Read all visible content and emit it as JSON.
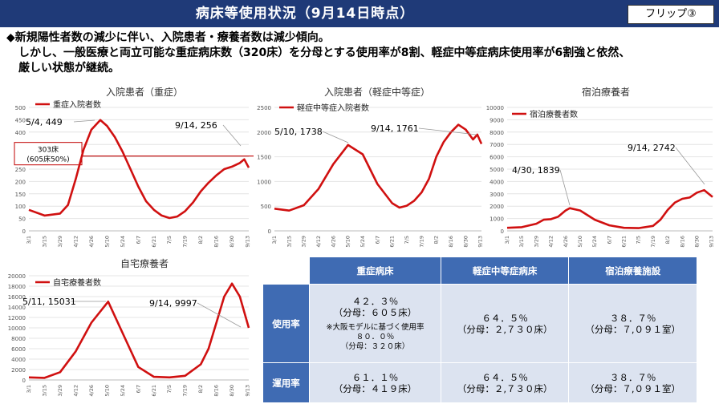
{
  "header": {
    "title": "病床等使用状況（9月14日時点）",
    "flip_label": "フリップ③"
  },
  "intro": {
    "line1": "◆新規陽性者数の減少に伴い、入院患者・療養者数は減少傾向。",
    "line2": "しかし、一般医療と両立可能な重症病床数（320床）を分母とする使用率が8割、軽症中等症病床使用率が6割強と依然、",
    "line3": "厳しい状態が継続。"
  },
  "x_ticks": [
    "3/1",
    "3/15",
    "3/29",
    "4/12",
    "4/26",
    "5/10",
    "5/24",
    "6/7",
    "6/21",
    "7/5",
    "7/19",
    "8/2",
    "8/16",
    "8/30",
    "9/13"
  ],
  "chart_data": [
    {
      "type": "line",
      "title": "入院患者（重症）",
      "series": [
        {
          "name": "重症入院者数",
          "color": "#d01010",
          "x": [
            "3/1",
            "3/15",
            "3/29",
            "4/5",
            "4/12",
            "4/19",
            "4/26",
            "5/4",
            "5/10",
            "5/17",
            "5/24",
            "5/31",
            "6/7",
            "6/14",
            "6/21",
            "6/28",
            "7/5",
            "7/12",
            "7/19",
            "7/26",
            "8/2",
            "8/9",
            "8/16",
            "8/23",
            "8/30",
            "9/6",
            "9/10",
            "9/14"
          ],
          "values": [
            85,
            62,
            70,
            105,
            210,
            330,
            410,
            449,
            425,
            380,
            320,
            250,
            180,
            120,
            85,
            62,
            52,
            58,
            80,
            115,
            160,
            195,
            225,
            250,
            260,
            275,
            290,
            256
          ]
        }
      ],
      "ylim": [
        0,
        500
      ],
      "yticks": [
        0,
        50,
        100,
        150,
        200,
        250,
        300,
        350,
        400,
        450,
        500
      ],
      "reference": {
        "value": 303,
        "label_line1": "303床",
        "label_line2": "(605床50%)"
      },
      "annotations": [
        {
          "label": "5/4, 449"
        },
        {
          "label": "9/14, 256"
        }
      ]
    },
    {
      "type": "line",
      "title": "入院患者（軽症中等症）",
      "series": [
        {
          "name": "軽症中等症入院者数",
          "color": "#d01010",
          "x": [
            "3/1",
            "3/15",
            "3/29",
            "4/12",
            "4/26",
            "5/10",
            "5/24",
            "6/7",
            "6/21",
            "6/28",
            "7/5",
            "7/12",
            "7/19",
            "7/26",
            "8/2",
            "8/9",
            "8/16",
            "8/23",
            "8/30",
            "9/6",
            "9/10",
            "9/14"
          ],
          "values": [
            450,
            410,
            520,
            850,
            1350,
            1738,
            1550,
            950,
            560,
            470,
            510,
            610,
            780,
            1050,
            1500,
            1800,
            2000,
            2150,
            2050,
            1850,
            1950,
            1761
          ]
        }
      ],
      "ylim": [
        0,
        2500
      ],
      "yticks": [
        0,
        500,
        1000,
        1500,
        2000,
        2500
      ],
      "annotations": [
        {
          "label": "5/10, 1738"
        },
        {
          "label": "9/14, 1761"
        }
      ]
    },
    {
      "type": "line",
      "title": "宿泊療養者",
      "series": [
        {
          "name": "宿泊療養者数",
          "color": "#d01010",
          "x": [
            "3/1",
            "3/15",
            "3/29",
            "4/5",
            "4/12",
            "4/19",
            "4/26",
            "4/30",
            "5/10",
            "5/24",
            "6/7",
            "6/21",
            "7/5",
            "7/19",
            "7/26",
            "8/2",
            "8/9",
            "8/16",
            "8/23",
            "8/30",
            "9/6",
            "9/14"
          ],
          "values": [
            250,
            300,
            580,
            900,
            950,
            1150,
            1650,
            1839,
            1650,
            900,
            450,
            250,
            220,
            400,
            900,
            1700,
            2300,
            2600,
            2700,
            3100,
            3300,
            2742
          ]
        }
      ],
      "ylim": [
        0,
        10000
      ],
      "yticks": [
        0,
        1000,
        2000,
        3000,
        4000,
        5000,
        6000,
        7000,
        8000,
        9000,
        10000
      ],
      "annotations": [
        {
          "label": "4/30, 1839"
        },
        {
          "label": "9/14, 2742"
        }
      ]
    },
    {
      "type": "line",
      "title": "自宅療養者",
      "series": [
        {
          "name": "自宅療養者数",
          "color": "#d01010",
          "x": [
            "3/1",
            "3/15",
            "3/29",
            "4/12",
            "4/26",
            "5/11",
            "5/24",
            "6/7",
            "6/21",
            "7/5",
            "7/19",
            "8/2",
            "8/9",
            "8/16",
            "8/23",
            "8/30",
            "9/6",
            "9/14"
          ],
          "values": [
            500,
            400,
            1500,
            5500,
            11000,
            15031,
            9000,
            2500,
            600,
            500,
            800,
            3000,
            6000,
            11000,
            16000,
            18500,
            16000,
            9997
          ]
        }
      ],
      "ylim": [
        0,
        20000
      ],
      "yticks": [
        0,
        2000,
        4000,
        6000,
        8000,
        10000,
        12000,
        14000,
        16000,
        18000,
        20000
      ],
      "annotations": [
        {
          "label": "5/11, 15031"
        },
        {
          "label": "9/14, 9997"
        }
      ]
    }
  ],
  "table": {
    "headers": [
      "重症病床",
      "軽症中等症病床",
      "宿泊療養施設"
    ],
    "rows": [
      {
        "label": "使用率",
        "cells": [
          {
            "l1": "４２．３％",
            "l2": "（分母：６０５床）",
            "n1": "※大阪モデルに基づく使用率",
            "n2": "８０．０％",
            "n3": "（分母：３２０床）"
          },
          {
            "l1": "６４．５％",
            "l2": "（分母：２,７３０床）"
          },
          {
            "l1": "３８．７％",
            "l2": "（分母：７,０９１室）"
          }
        ]
      },
      {
        "label": "運用率",
        "cells": [
          {
            "l1": "６１．１％",
            "l2": "（分母：４１９床）"
          },
          {
            "l1": "６４．５％",
            "l2": "（分母：２,７３０床）"
          },
          {
            "l1": "３８．７％",
            "l2": "（分母：７,０９１室）"
          }
        ]
      }
    ]
  }
}
